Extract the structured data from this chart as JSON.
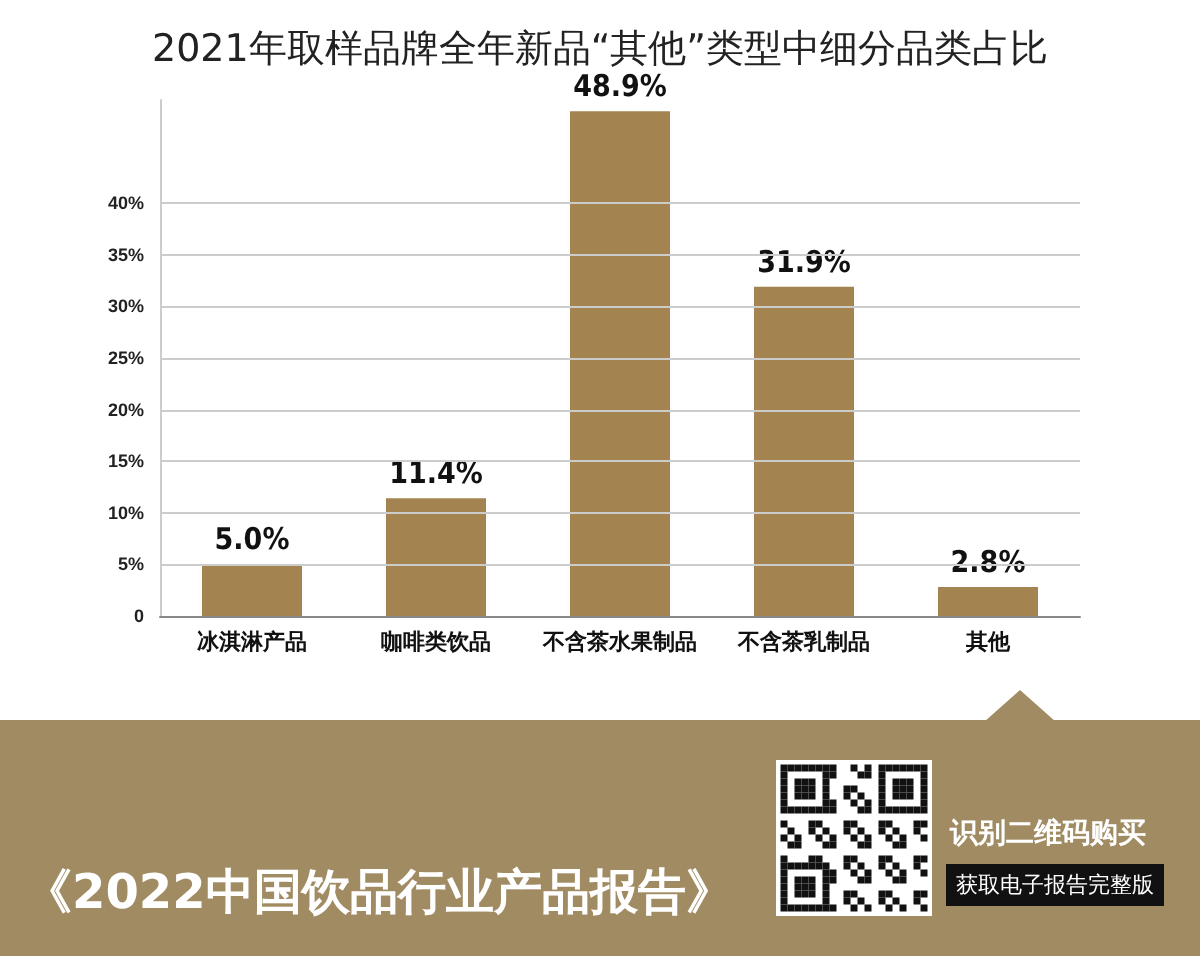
{
  "chart_data": {
    "type": "bar",
    "title": "2021年取样品牌全年新品“其他”类型中细分品类占比",
    "categories": [
      "冰淇淋产品",
      "咖啡类饮品",
      "不含茶水果制品",
      "不含茶乳制品",
      "其他"
    ],
    "values": [
      5.0,
      11.4,
      48.9,
      31.9,
      2.8
    ],
    "value_labels": [
      "5.0%",
      "11.4%",
      "48.9%",
      "31.9%",
      "2.8%"
    ],
    "color": "#a3834f",
    "ylim": [
      0,
      50
    ],
    "yticks": [
      {
        "value": 0,
        "label": "0"
      },
      {
        "value": 5,
        "label": "5%"
      },
      {
        "value": 10,
        "label": "10%"
      },
      {
        "value": 15,
        "label": "15%"
      },
      {
        "value": 20,
        "label": "20%"
      },
      {
        "value": 25,
        "label": "25%"
      },
      {
        "value": 30,
        "label": "30%"
      },
      {
        "value": 35,
        "label": "35%"
      },
      {
        "value": 40,
        "label": "40%"
      }
    ],
    "grid": "y",
    "annotations": [
      "《2022中国饮品行业产品报告》",
      "识别二维码购买",
      "获取电子报告完整版"
    ]
  }
}
